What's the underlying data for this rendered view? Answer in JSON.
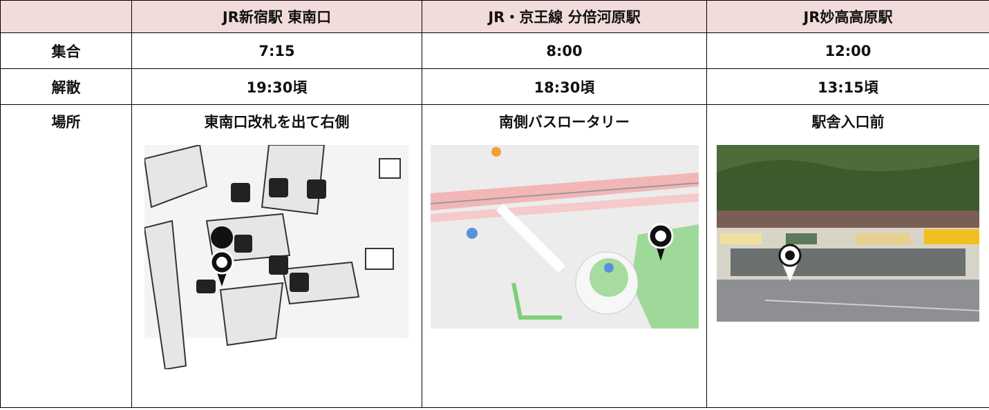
{
  "table": {
    "columns": [
      "JR新宿駅 東南口",
      "JR・京王線 分倍河原駅",
      "JR妙高高原駅"
    ],
    "rows": [
      {
        "label": "集合",
        "cells": [
          "7:15",
          "8:00",
          "12:00"
        ]
      },
      {
        "label": "解散",
        "cells": [
          "19:30頃",
          "18:30頃",
          "13:15頃"
        ]
      },
      {
        "label": "場所",
        "cells": [
          "東南口改札を出て右側",
          "南側バスロータリー",
          "駅舎入口前"
        ]
      }
    ]
  }
}
